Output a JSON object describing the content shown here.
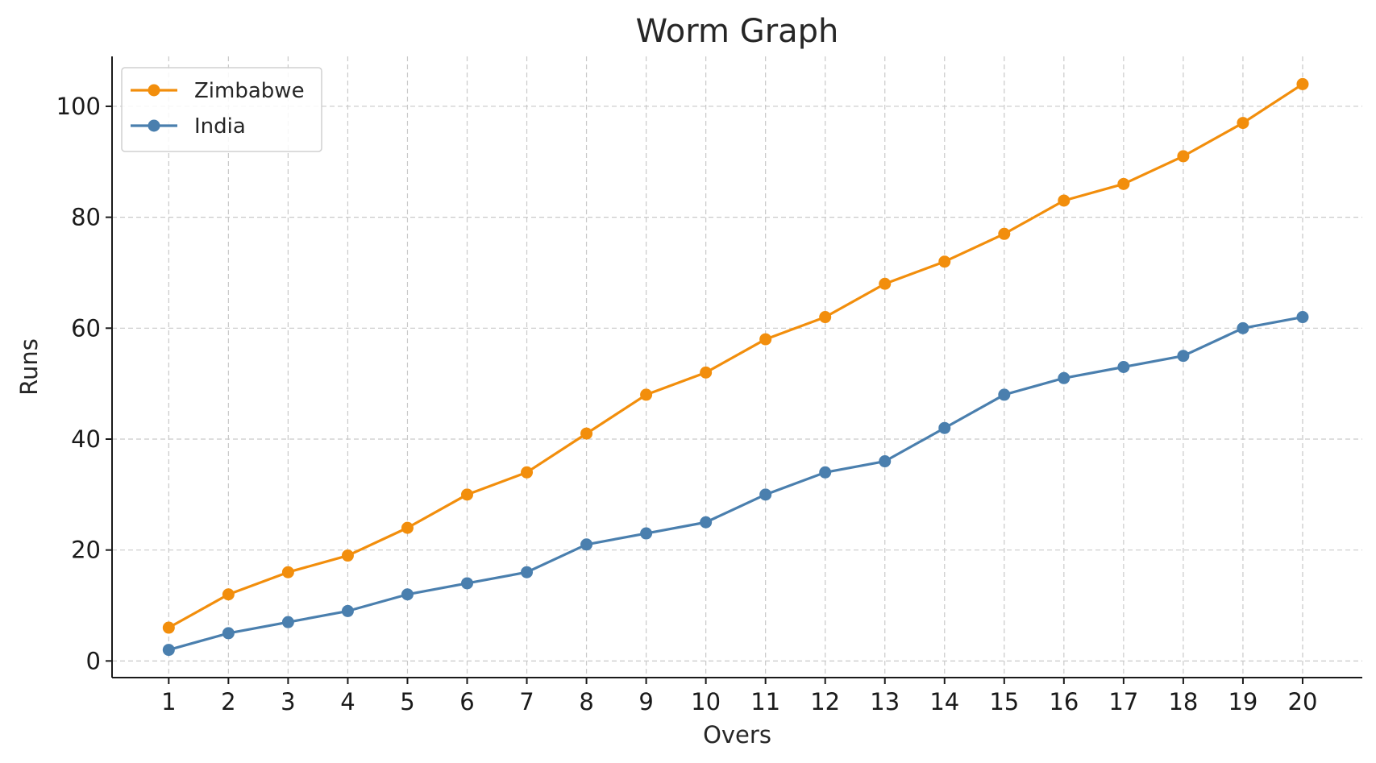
{
  "chart_data": {
    "type": "line",
    "title": "Worm Graph",
    "xlabel": "Overs",
    "ylabel": "Runs",
    "x": [
      1,
      2,
      3,
      4,
      5,
      6,
      7,
      8,
      9,
      10,
      11,
      12,
      13,
      14,
      15,
      16,
      17,
      18,
      19,
      20
    ],
    "xlim": [
      0.05,
      21.0
    ],
    "ylim": [
      -3,
      109
    ],
    "y_ticks": [
      0,
      20,
      40,
      60,
      80,
      100
    ],
    "grid": true,
    "legend_position": "top-left",
    "series": [
      {
        "name": "Zimbabwe",
        "color": "#f28e0c",
        "marker": "circle",
        "values": [
          6,
          12,
          16,
          19,
          24,
          30,
          34,
          41,
          48,
          52,
          58,
          62,
          68,
          72,
          77,
          83,
          86,
          91,
          97,
          104
        ]
      },
      {
        "name": "India",
        "color": "#4a7fae",
        "marker": "circle",
        "values": [
          2,
          5,
          7,
          9,
          12,
          14,
          16,
          21,
          23,
          25,
          30,
          34,
          36,
          42,
          48,
          51,
          53,
          55,
          60,
          62
        ]
      }
    ]
  }
}
